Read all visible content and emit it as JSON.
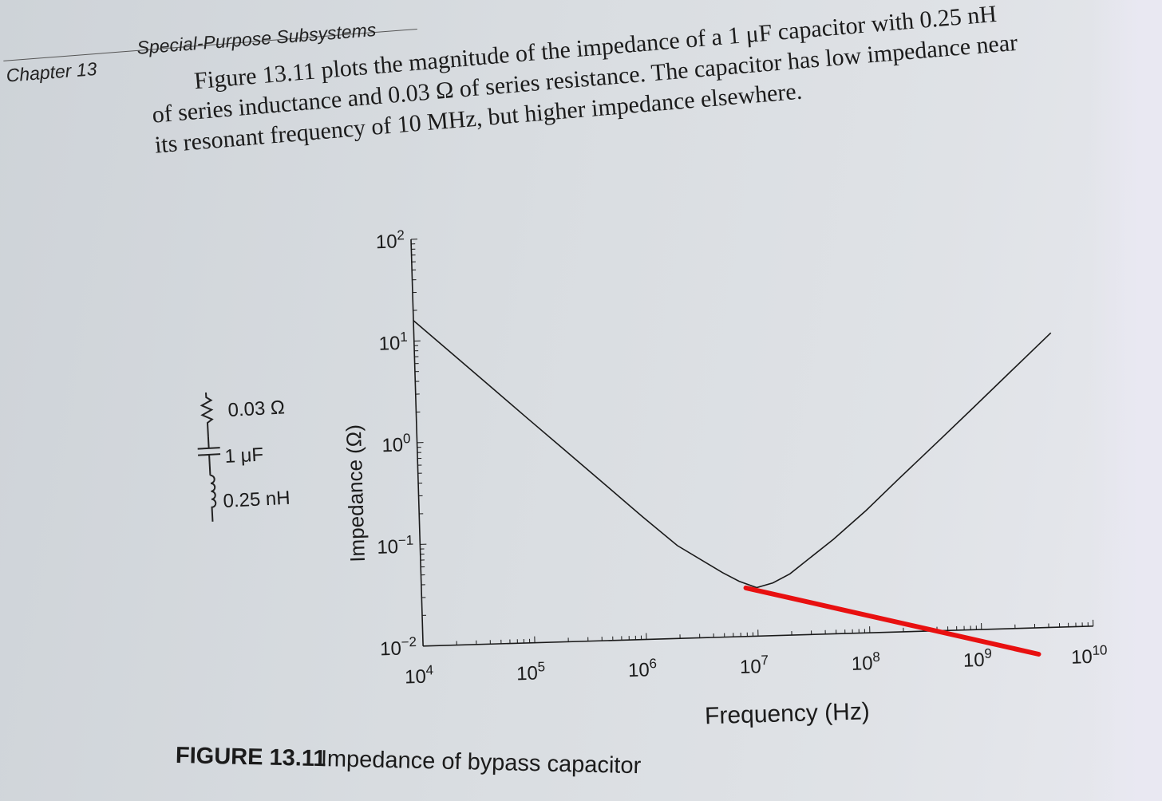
{
  "header": {
    "chapter": "Chapter 13",
    "section": "Special-Purpose Subsystems"
  },
  "paragraph": {
    "lines": [
      "Figure 13.11 plots the magnitude of the impedance of a 1 μF capacitor with 0.25 nH",
      "of series inductance and 0.03 Ω of series resistance. The capacitor has low impedance near",
      "its resonant frequency of 10 MHz, but higher impedance elsewhere."
    ]
  },
  "schematic": {
    "resistor_label": "0.03 Ω",
    "capacitor_label": "1 μF",
    "inductor_label": "0.25 nH"
  },
  "figure": {
    "caption_number": "FIGURE 13.11",
    "caption_text": "Impedance of bypass capacitor"
  },
  "chart_data": {
    "type": "line",
    "xlabel": "Frequency (Hz)",
    "ylabel": "Impedance (Ω)",
    "x_scale": "log",
    "y_scale": "log",
    "xlim": [
      10000,
      10000000000
    ],
    "ylim": [
      0.01,
      100
    ],
    "x_ticks": [
      {
        "base": "10",
        "exp": "4"
      },
      {
        "base": "10",
        "exp": "5"
      },
      {
        "base": "10",
        "exp": "6"
      },
      {
        "base": "10",
        "exp": "7"
      },
      {
        "base": "10",
        "exp": "8"
      },
      {
        "base": "10",
        "exp": "9"
      },
      {
        "base": "10",
        "exp": "10"
      }
    ],
    "y_ticks": [
      {
        "base": "10",
        "exp": "−2"
      },
      {
        "base": "10",
        "exp": "−1"
      },
      {
        "base": "10",
        "exp": "0"
      },
      {
        "base": "10",
        "exp": "1"
      },
      {
        "base": "10",
        "exp": "2"
      }
    ],
    "series": [
      {
        "x": [
          10000,
          20000,
          50000,
          100000,
          200000,
          500000,
          1000000,
          2000000,
          5000000,
          7000000,
          10000000,
          14000000,
          20000000,
          50000000,
          100000000,
          200000000,
          500000000,
          1000000000,
          2000000000,
          5000000000
        ],
        "values": [
          15.9,
          7.96,
          3.18,
          1.59,
          0.8,
          0.32,
          0.16,
          0.082,
          0.043,
          0.035,
          0.03,
          0.033,
          0.04,
          0.085,
          0.16,
          0.32,
          0.79,
          1.57,
          3.14,
          7.85
        ]
      }
    ],
    "annotation": {
      "type": "hand-drawn red line",
      "color": "#e81010",
      "x": [
        8000000,
        3200000000
      ],
      "values": [
        0.03,
        0.0055
      ]
    },
    "grid": false,
    "line_color": "#1a1a1a"
  }
}
